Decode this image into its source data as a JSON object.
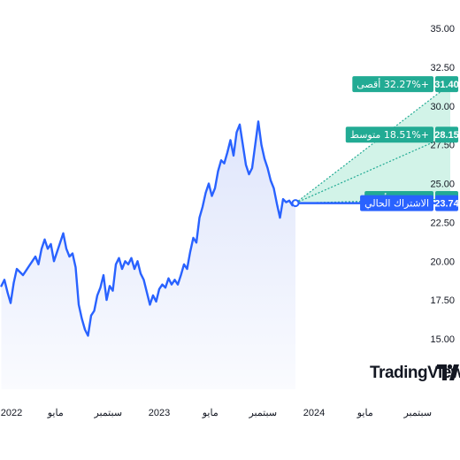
{
  "chart_data": {
    "type": "line",
    "y_ticks": [
      "35.00",
      "32.50",
      "30.00",
      "27.50",
      "25.00",
      "22.50",
      "20.00",
      "17.50",
      "15.00"
    ],
    "y_tick_values": [
      35,
      32.5,
      30,
      27.5,
      25,
      22.5,
      20,
      17.5,
      15
    ],
    "ylim": [
      13.1,
      36
    ],
    "x_ticks": [
      {
        "label": "2022",
        "t": 2022.0
      },
      {
        "label": "مايو",
        "t": 2022.33
      },
      {
        "label": "سبتمبر",
        "t": 2022.67
      },
      {
        "label": "2023",
        "t": 2023.0
      },
      {
        "label": "مايو",
        "t": 2023.33
      },
      {
        "label": "سبتمبر",
        "t": 2023.67
      },
      {
        "label": "2024",
        "t": 2024.0
      },
      {
        "label": "مايو",
        "t": 2024.33
      },
      {
        "label": "سبتمبر",
        "t": 2024.67
      }
    ],
    "xlim": [
      2022.0,
      2025.0
    ],
    "series": [
      {
        "x": [
          2021.98,
          2022.0,
          2022.02,
          2022.04,
          2022.06,
          2022.08,
          2022.1,
          2022.12,
          2022.14,
          2022.16,
          2022.18,
          2022.2,
          2022.22,
          2022.24,
          2022.26,
          2022.28,
          2022.3,
          2022.32,
          2022.34,
          2022.36,
          2022.38,
          2022.4,
          2022.42,
          2022.44,
          2022.46,
          2022.48,
          2022.5,
          2022.52,
          2022.54,
          2022.56,
          2022.58,
          2022.6,
          2022.62,
          2022.64,
          2022.66,
          2022.68,
          2022.7,
          2022.72,
          2022.74,
          2022.76,
          2022.78,
          2022.8,
          2022.82,
          2022.84,
          2022.86,
          2022.88,
          2022.9,
          2022.92,
          2022.94,
          2022.96,
          2022.98,
          2023.0,
          2023.02,
          2023.04,
          2023.06,
          2023.08,
          2023.1,
          2023.12,
          2023.14,
          2023.16,
          2023.18,
          2023.2,
          2023.22,
          2023.24,
          2023.26,
          2023.28,
          2023.3,
          2023.32,
          2023.34,
          2023.36,
          2023.38,
          2023.4,
          2023.42,
          2023.44,
          2023.46,
          2023.48,
          2023.5,
          2023.52,
          2023.54,
          2023.56,
          2023.58,
          2023.6,
          2023.62,
          2023.64,
          2023.66,
          2023.68,
          2023.7,
          2023.72,
          2023.74,
          2023.76,
          2023.78,
          2023.8,
          2023.82,
          2023.84,
          2023.86,
          2023.88
        ],
        "y": [
          18.4,
          18.8,
          18.0,
          17.3,
          18.6,
          19.5,
          19.3,
          19.1,
          19.4,
          19.7,
          20.0,
          20.3,
          19.8,
          20.8,
          21.4,
          20.8,
          21.1,
          20.0,
          20.6,
          21.2,
          21.8,
          20.8,
          20.3,
          20.5,
          19.6,
          17.2,
          16.3,
          15.6,
          15.2,
          16.5,
          16.8,
          17.8,
          18.3,
          19.1,
          17.5,
          18.4,
          18.1,
          19.8,
          20.2,
          19.5,
          20.0,
          19.8,
          20.2,
          19.5,
          20.0,
          19.2,
          18.8,
          18.0,
          17.2,
          17.8,
          17.4,
          18.2,
          18.5,
          18.3,
          18.9,
          18.5,
          18.8,
          18.5,
          19.1,
          19.8,
          19.5,
          20.6,
          21.5,
          21.2,
          22.8,
          23.5,
          24.4,
          25.0,
          24.2,
          24.7,
          25.8,
          26.5,
          26.3,
          27.0,
          27.8,
          26.8,
          28.3,
          28.8,
          27.5,
          26.2,
          25.6,
          26.0,
          27.5,
          29.0,
          27.5,
          26.6,
          26.0,
          25.2,
          24.7,
          23.7,
          22.8,
          24.0,
          23.8,
          23.9,
          23.6,
          23.74
        ]
      }
    ],
    "forecast_start_t": 2023.88,
    "forecast_end_t": 2024.88,
    "forecast": [
      {
        "kind": "high",
        "label": "+32.27% أقصى",
        "value": 31.4,
        "value_label": "31.40"
      },
      {
        "kind": "avg",
        "label": "+18.51% متوسط",
        "value": 28.15,
        "value_label": "28.15"
      },
      {
        "kind": "low",
        "label": "+1.10% أدنى",
        "value": 24.0,
        "value_label": "24.00"
      }
    ],
    "current": {
      "label": "الاشتراك الحالي",
      "value": 23.74,
      "value_label": "23.74"
    },
    "colors": {
      "line": "#2962ff",
      "area_top": "#dde4fb",
      "forecast_fill": "#cdf2e6",
      "forecast_line": "#22ab94",
      "label_green": "#22ab94",
      "label_blue": "#2962ff"
    }
  },
  "watermark": {
    "text": "TradingView",
    "icon": "tradingview-logo-icon"
  }
}
